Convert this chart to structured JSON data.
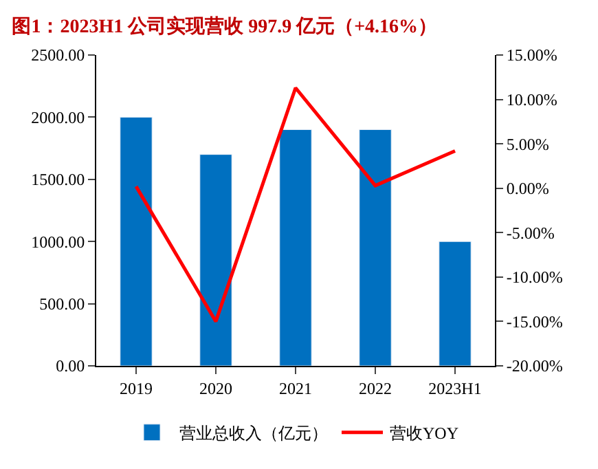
{
  "chart_data": {
    "type": "bar",
    "title": "图1：2023H1 公司实现营收 997.9 亿元（+4.16%）",
    "categories": [
      "2019",
      "2020",
      "2021",
      "2022",
      "2023H1"
    ],
    "series": [
      {
        "name": "营业总收入（亿元）",
        "color": "#0070c0",
        "values": [
          2000,
          1700,
          1900,
          1900,
          1000
        ]
      },
      {
        "name": "营收YOY",
        "type": "line",
        "axis": "y2",
        "color": "#ff0000",
        "values": [
          0.2,
          -15.0,
          11.3,
          0.3,
          4.2
        ]
      }
    ],
    "ylim": [
      0,
      2500
    ],
    "yticks": [
      {
        "value": 0,
        "label": "0.00"
      },
      {
        "value": 500,
        "label": "500.00"
      },
      {
        "value": 1000,
        "label": "1000.00"
      },
      {
        "value": 1500,
        "label": "1500.00"
      },
      {
        "value": 2000,
        "label": "2000.00"
      },
      {
        "value": 2500,
        "label": "2500.00"
      }
    ],
    "y2lim": [
      -20,
      15
    ],
    "y2ticks": [
      {
        "value": -20,
        "label": "-20.00%"
      },
      {
        "value": -15,
        "label": "-15.00%"
      },
      {
        "value": -10,
        "label": "-10.00%"
      },
      {
        "value": -5,
        "label": "-5.00%"
      },
      {
        "value": 0,
        "label": "0.00%"
      },
      {
        "value": 5,
        "label": "5.00%"
      },
      {
        "value": 10,
        "label": "10.00%"
      },
      {
        "value": 15,
        "label": "15.00%"
      }
    ],
    "legend": "bottom"
  }
}
